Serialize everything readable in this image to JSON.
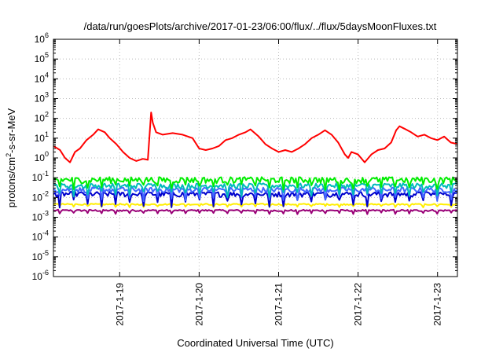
{
  "chart_data": {
    "type": "line",
    "title": "/data/run/goesPlots/archive/2017-01-23/06:00/flux/../flux/5daysMoonFluxes.txt",
    "xlabel": "Coordinated Universal Time (UTC)",
    "ylabel": {
      "before": "protons/cm",
      "sup": "2",
      "after": "-s-sr-MeV"
    },
    "y_scale": "log",
    "y_ticks": {
      "base": "10",
      "exponents": [
        "-6",
        "-5",
        "-4",
        "-3",
        "-2",
        "-1",
        "0",
        "1",
        "2",
        "3",
        "4",
        "5",
        "6"
      ]
    },
    "ylim": [
      1e-06,
      1000000.0
    ],
    "xlim": [
      "2017-01-18T04:00",
      "2017-01-23T06:00"
    ],
    "x_ticks": [
      {
        "label": "2017-1-19",
        "value": "2017-01-19T00:00"
      },
      {
        "label": "2017-1-20",
        "value": "2017-01-20T00:00"
      },
      {
        "label": "2017-1-21",
        "value": "2017-01-21T00:00"
      },
      {
        "label": "2017-1-22",
        "value": "2017-01-22T00:00"
      },
      {
        "label": "2017-1-23",
        "value": "2017-01-23T00:00"
      }
    ],
    "grid": true,
    "legend": "none",
    "series": [
      {
        "color": "#ff0000",
        "points": [
          [
            "2017-01-18T04:00",
            4
          ],
          [
            "2017-01-18T06:00",
            2.5
          ],
          [
            "2017-01-18T07:30",
            1
          ],
          [
            "2017-01-18T09:00",
            0.6
          ],
          [
            "2017-01-18T10:30",
            2
          ],
          [
            "2017-01-18T12:00",
            3
          ],
          [
            "2017-01-18T14:00",
            8
          ],
          [
            "2017-01-18T16:00",
            15
          ],
          [
            "2017-01-18T17:30",
            28
          ],
          [
            "2017-01-18T19:30",
            20
          ],
          [
            "2017-01-18T21:00",
            10
          ],
          [
            "2017-01-18T23:00",
            5
          ],
          [
            "2017-01-19T01:00",
            2
          ],
          [
            "2017-01-19T03:00",
            1
          ],
          [
            "2017-01-19T05:00",
            0.7
          ],
          [
            "2017-01-19T07:00",
            0.9
          ],
          [
            "2017-01-19T08:30",
            0.8
          ],
          [
            "2017-01-19T09:30",
            200
          ],
          [
            "2017-01-19T10:00",
            60
          ],
          [
            "2017-01-19T11:00",
            20
          ],
          [
            "2017-01-19T13:00",
            15
          ],
          [
            "2017-01-19T16:00",
            18
          ],
          [
            "2017-01-19T19:00",
            15
          ],
          [
            "2017-01-19T22:00",
            10
          ],
          [
            "2017-01-20T00:00",
            3
          ],
          [
            "2017-01-20T02:00",
            2.5
          ],
          [
            "2017-01-20T04:00",
            3
          ],
          [
            "2017-01-20T06:00",
            4
          ],
          [
            "2017-01-20T08:00",
            8
          ],
          [
            "2017-01-20T10:00",
            10
          ],
          [
            "2017-01-20T12:00",
            15
          ],
          [
            "2017-01-20T14:00",
            20
          ],
          [
            "2017-01-20T15:30",
            28
          ],
          [
            "2017-01-20T18:00",
            12
          ],
          [
            "2017-01-20T20:00",
            5
          ],
          [
            "2017-01-20T22:00",
            3
          ],
          [
            "2017-01-21T00:00",
            2
          ],
          [
            "2017-01-21T02:00",
            2.5
          ],
          [
            "2017-01-21T04:00",
            2
          ],
          [
            "2017-01-21T06:00",
            3
          ],
          [
            "2017-01-21T08:00",
            5
          ],
          [
            "2017-01-21T10:00",
            10
          ],
          [
            "2017-01-21T12:00",
            15
          ],
          [
            "2017-01-21T14:00",
            25
          ],
          [
            "2017-01-21T16:00",
            15
          ],
          [
            "2017-01-21T18:00",
            6
          ],
          [
            "2017-01-21T20:00",
            1.5
          ],
          [
            "2017-01-21T21:00",
            1
          ],
          [
            "2017-01-21T22:00",
            2
          ],
          [
            "2017-01-22T00:00",
            1.5
          ],
          [
            "2017-01-22T02:00",
            0.6
          ],
          [
            "2017-01-22T04:00",
            1.5
          ],
          [
            "2017-01-22T06:00",
            2.5
          ],
          [
            "2017-01-22T08:00",
            3
          ],
          [
            "2017-01-22T10:00",
            6
          ],
          [
            "2017-01-22T11:30",
            25
          ],
          [
            "2017-01-22T12:30",
            40
          ],
          [
            "2017-01-22T14:00",
            30
          ],
          [
            "2017-01-22T16:00",
            20
          ],
          [
            "2017-01-22T18:00",
            12
          ],
          [
            "2017-01-22T20:00",
            15
          ],
          [
            "2017-01-22T22:00",
            10
          ],
          [
            "2017-01-23T00:00",
            8
          ],
          [
            "2017-01-23T02:00",
            12
          ],
          [
            "2017-01-23T04:00",
            6
          ],
          [
            "2017-01-23T06:00",
            5
          ]
        ]
      },
      {
        "color": "#00ee00",
        "base": 0.08,
        "noise": 0.35,
        "dip_depth": 0.7
      },
      {
        "color": "#00bbbb",
        "base": 0.04,
        "noise": 0.3,
        "dip_depth": 0.75
      },
      {
        "color": "#4466ff",
        "base": 0.025,
        "noise": 0.3,
        "dip_depth": 0.75
      },
      {
        "color": "#0000cc",
        "base": 0.015,
        "noise": 0.3,
        "dip_depth": 0.8
      },
      {
        "color": "#ffee00",
        "base": 0.0045,
        "noise": 0.08,
        "dip_depth": 0.3
      },
      {
        "color": "#990077",
        "base": 0.0022,
        "noise": 0.1,
        "dip_depth": 0.35
      }
    ]
  }
}
